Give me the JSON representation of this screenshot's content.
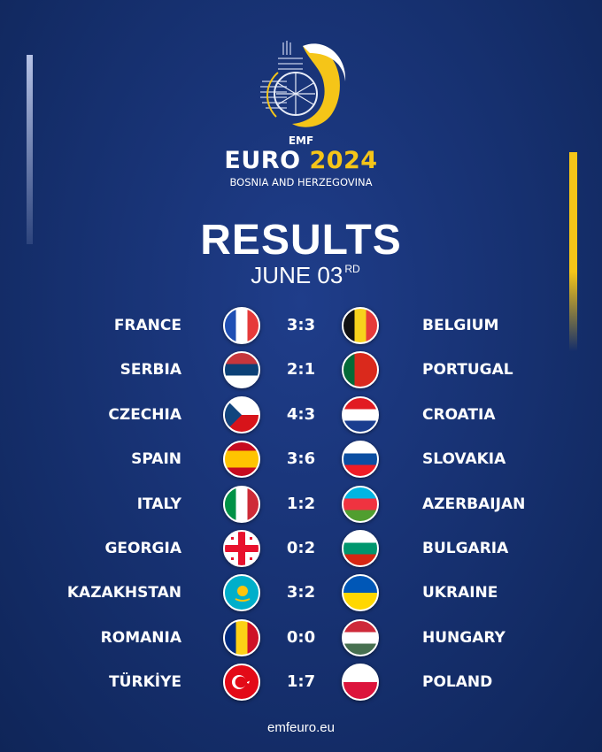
{
  "header": {
    "org": "EMF",
    "event": "EURO",
    "year": "2024",
    "host": "BOSNIA AND HERZEGOVINA",
    "title": "RESULTS",
    "date": "JUNE 03",
    "date_suffix": "RD"
  },
  "colors": {
    "background": "#16306f",
    "accent": "#f5c518"
  },
  "matches": [
    {
      "home": "FRANCE",
      "score": "3:3",
      "away": "BELGIUM",
      "home_flag": {
        "dir": "v",
        "colors": [
          "#1f4fb4",
          "#ffffff",
          "#e63a3a"
        ]
      },
      "away_flag": {
        "dir": "v",
        "colors": [
          "#111111",
          "#f7d21c",
          "#e63a3a"
        ]
      }
    },
    {
      "home": "SERBIA",
      "score": "2:1",
      "away": "PORTUGAL",
      "home_flag": {
        "dir": "h",
        "colors": [
          "#c6363c",
          "#0c4076",
          "#ffffff"
        ]
      },
      "away_flag": {
        "dir": "v",
        "colors": [
          "#046a38",
          "#da291c",
          "#da291c"
        ]
      }
    },
    {
      "home": "CZECHIA",
      "score": "4:3",
      "away": "CROATIA",
      "home_flag": {
        "dir": "h",
        "colors": [
          "#ffffff",
          "#d7141a"
        ],
        "special": "czech"
      },
      "away_flag": {
        "dir": "h",
        "colors": [
          "#e21b22",
          "#ffffff",
          "#1a3d8f"
        ]
      }
    },
    {
      "home": "SPAIN",
      "score": "3:6",
      "away": "SLOVAKIA",
      "home_flag": {
        "dir": "h",
        "colors": [
          "#c60b1e",
          "#ffc400",
          "#ffc400",
          "#c60b1e"
        ]
      },
      "away_flag": {
        "dir": "h",
        "colors": [
          "#ffffff",
          "#0b4ea2",
          "#ee1c25"
        ]
      }
    },
    {
      "home": "ITALY",
      "score": "1:2",
      "away": "AZERBAIJAN",
      "home_flag": {
        "dir": "v",
        "colors": [
          "#009246",
          "#ffffff",
          "#ce2b37"
        ]
      },
      "away_flag": {
        "dir": "h",
        "colors": [
          "#00b5e2",
          "#ef3340",
          "#509e2f"
        ]
      }
    },
    {
      "home": "GEORGIA",
      "score": "0:2",
      "away": "BULGARIA",
      "home_flag": {
        "dir": "h",
        "colors": [
          "#ffffff"
        ],
        "special": "georgia"
      },
      "away_flag": {
        "dir": "h",
        "colors": [
          "#ffffff",
          "#00966e",
          "#d62612"
        ]
      }
    },
    {
      "home": "KAZAKHSTAN",
      "score": "3:2",
      "away": "UKRAINE",
      "home_flag": {
        "dir": "h",
        "colors": [
          "#00afca"
        ],
        "special": "kazakhstan"
      },
      "away_flag": {
        "dir": "h",
        "colors": [
          "#0057b7",
          "#ffd700"
        ]
      }
    },
    {
      "home": "ROMANIA",
      "score": "0:0",
      "away": "HUNGARY",
      "home_flag": {
        "dir": "v",
        "colors": [
          "#002b7f",
          "#fcd116",
          "#ce1126"
        ]
      },
      "away_flag": {
        "dir": "h",
        "colors": [
          "#ce2939",
          "#ffffff",
          "#477050"
        ]
      }
    },
    {
      "home": "TÜRKİYE",
      "score": "1:7",
      "away": "POLAND",
      "home_flag": {
        "dir": "h",
        "colors": [
          "#e30a17"
        ],
        "special": "turkey"
      },
      "away_flag": {
        "dir": "h",
        "colors": [
          "#ffffff",
          "#dc143c"
        ]
      }
    }
  ],
  "footer": {
    "url": "emfeuro.eu"
  }
}
